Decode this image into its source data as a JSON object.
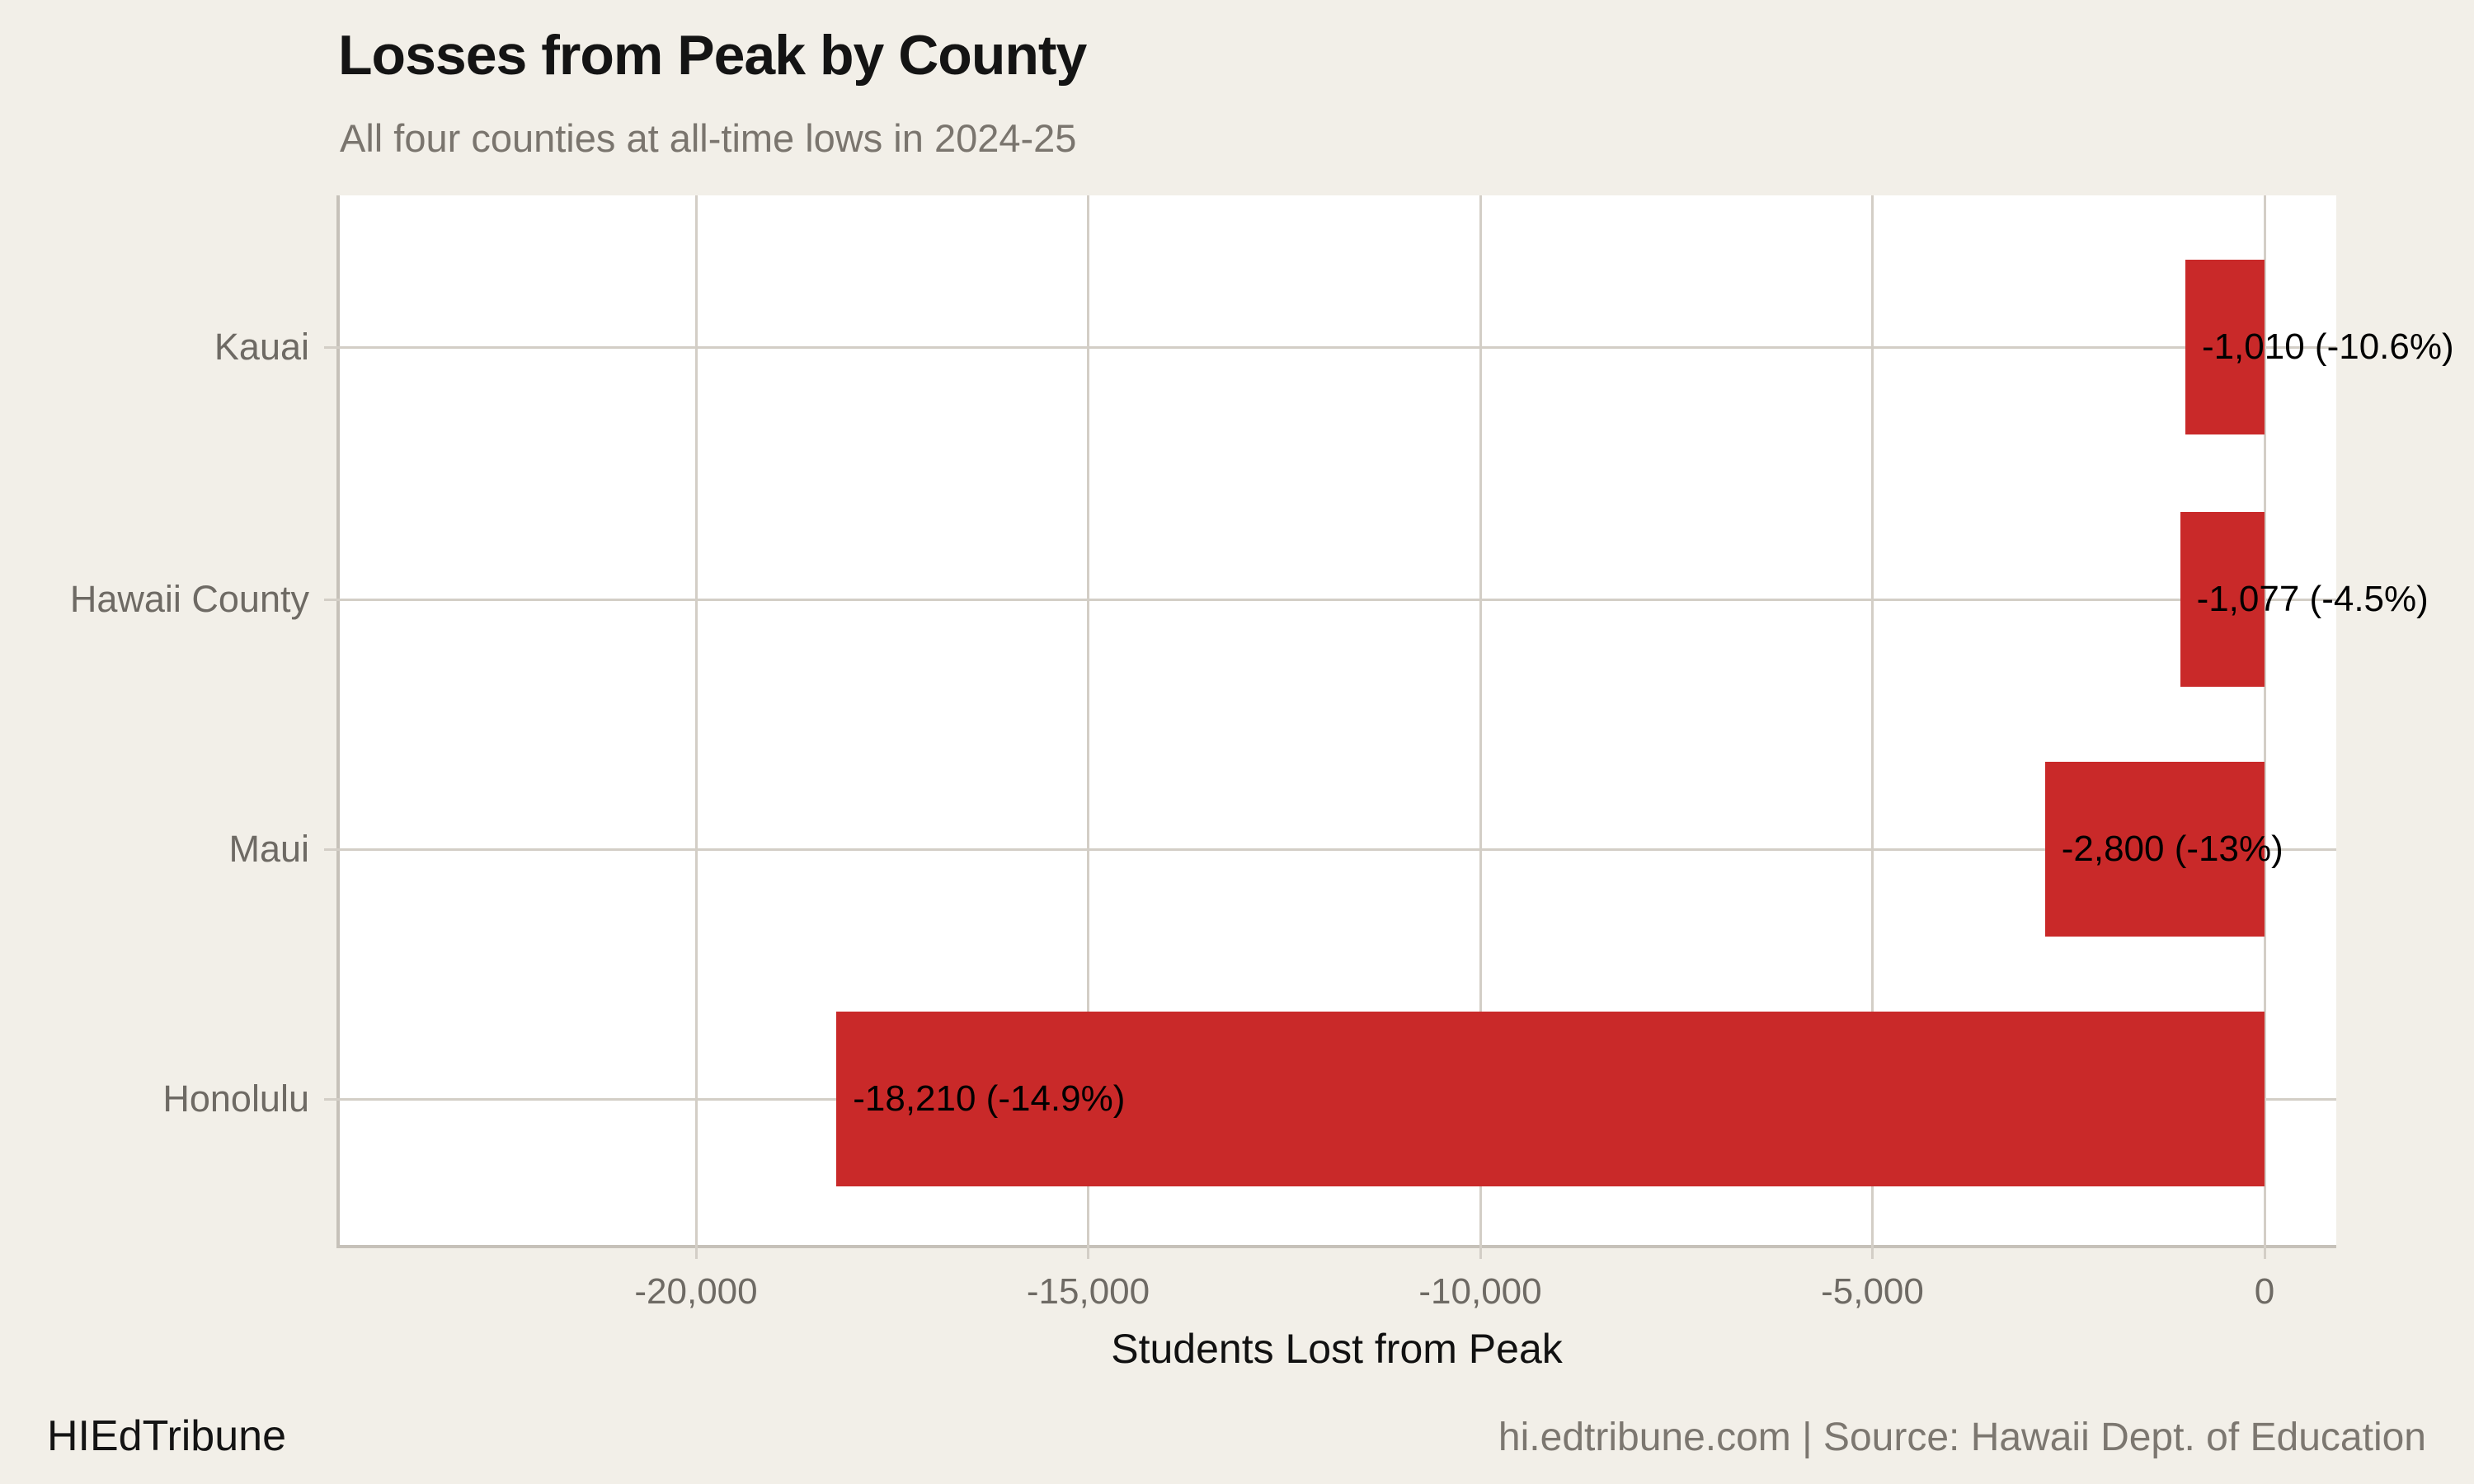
{
  "header": {
    "title": "Losses from Peak by County",
    "subtitle": "All four counties at all-time lows in 2024-25"
  },
  "footer": {
    "brand": "HIEdTribune",
    "source": "hi.edtribune.com | Source: Hawaii Dept. of Education"
  },
  "chart_data": {
    "type": "bar",
    "orientation": "horizontal",
    "title": "Losses from Peak by County",
    "subtitle": "All four counties at all-time lows in 2024-25",
    "xlabel": "Students Lost from Peak",
    "ylabel": "",
    "categories": [
      "Kauai",
      "Hawaii County",
      "Maui",
      "Honolulu"
    ],
    "values": [
      -1010,
      -1077,
      -2800,
      -18210
    ],
    "percent_change": [
      -10.6,
      -4.5,
      -13,
      -14.9
    ],
    "bar_labels": [
      "-1,010 (-10.6%)",
      "-1,077 (-4.5%)",
      "-2,800 (-13%)",
      "-18,210 (-14.9%)"
    ],
    "x_ticks": [
      -20000,
      -15000,
      -10000,
      -5000,
      0
    ],
    "x_tick_labels": [
      "-20,000",
      "-15,000",
      "-10,000",
      "-5,000",
      "0"
    ],
    "xlim": [
      -24560,
      915
    ],
    "grid": true,
    "legend": "none",
    "bar_color": "#c92929",
    "background_color": "#f2efe8",
    "plot_background_color": "#ffffff",
    "gridline_color": "#d3cec6"
  }
}
